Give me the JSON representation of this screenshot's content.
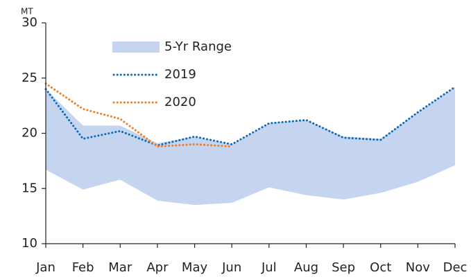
{
  "chart_data": {
    "type": "line",
    "y_unit": "MT",
    "categories": [
      "Jan",
      "Feb",
      "Mar",
      "Apr",
      "May",
      "Jun",
      "Jul",
      "Aug",
      "Sep",
      "Oct",
      "Nov",
      "Dec"
    ],
    "series": [
      {
        "name": "5-Yr Range",
        "type": "band",
        "color": "#c5d5ef",
        "upper": [
          24.0,
          20.7,
          20.7,
          19.1,
          19.7,
          19.0,
          20.9,
          21.2,
          19.7,
          19.5,
          21.9,
          24.2
        ],
        "lower": [
          16.7,
          14.9,
          15.8,
          13.9,
          13.5,
          13.7,
          15.1,
          14.4,
          14.0,
          14.6,
          15.6,
          17.1
        ]
      },
      {
        "name": "2019",
        "type": "line",
        "style": "dotted",
        "color": "#0a6ab4",
        "values": [
          24.0,
          19.5,
          20.2,
          18.9,
          19.7,
          19.0,
          20.9,
          21.2,
          19.6,
          19.4,
          21.9,
          24.2
        ]
      },
      {
        "name": "2020",
        "type": "line",
        "style": "dotted",
        "color": "#f07d22",
        "values": [
          24.5,
          22.2,
          21.3,
          18.8,
          19.0,
          18.8,
          null,
          null,
          null,
          null,
          null,
          null
        ]
      }
    ],
    "ylim": [
      10,
      30
    ],
    "yticks": [
      10,
      15,
      20,
      25,
      30
    ],
    "legend": "upper left",
    "grid": false
  }
}
